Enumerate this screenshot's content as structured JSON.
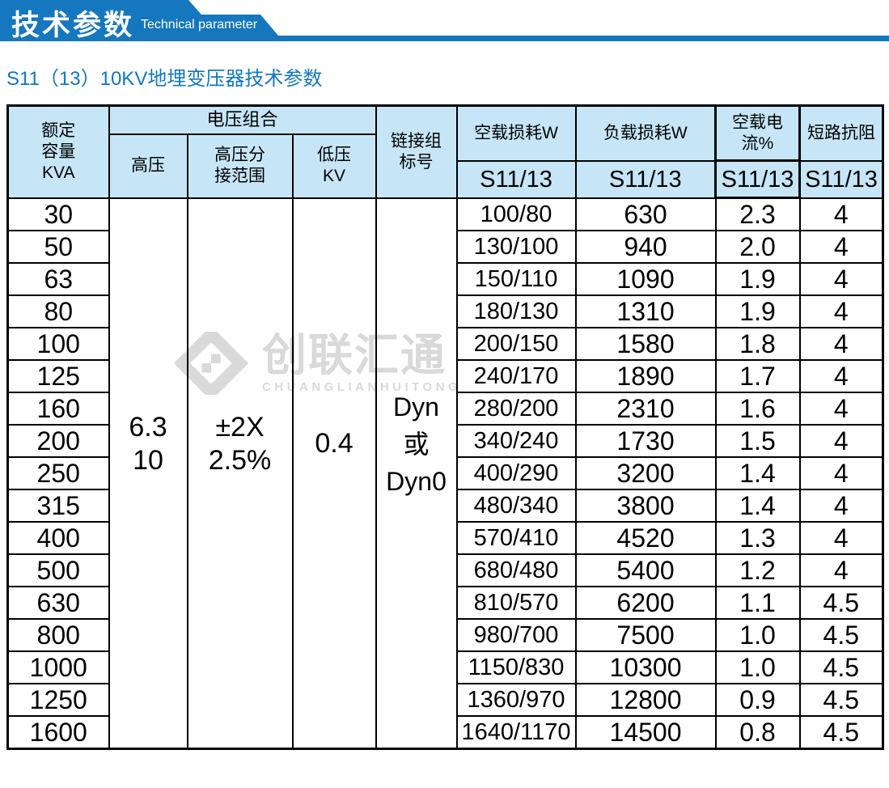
{
  "banner": {
    "title": "技术参数",
    "subtitle": "Technical parameter"
  },
  "page_title": "S11（13）10KV地埋变压器技术参数",
  "watermark": {
    "logo": "chuanglian-diamond-logo",
    "name_cn": "创联汇通",
    "name_en": "CHUANGLIANHUITONG"
  },
  "colors": {
    "accent_blue": "#1577bd",
    "header_bg": "#c6e6f7",
    "border": "#000000",
    "watermark_gray": "#d9d9d9"
  },
  "table": {
    "header": {
      "capacity": [
        "额定",
        "容量",
        "KVA"
      ],
      "voltage_group": "电压组合",
      "hv": "高压",
      "hv_tap": [
        "高压分",
        "接范围"
      ],
      "lv": [
        "低压",
        "KV"
      ],
      "vector_group": [
        "链接组",
        "标号"
      ],
      "no_load_loss": "空载损耗W",
      "load_loss": "负载损耗W",
      "no_load_current": "空载电流%",
      "impedance": "短路抗阻",
      "model": "S11/13"
    },
    "merged": {
      "hv": [
        "6.3",
        "10"
      ],
      "hv_tap": [
        "±2X",
        "2.5%"
      ],
      "lv": "0.4",
      "vector": [
        "Dyn",
        "或",
        "Dyn0"
      ]
    },
    "rows": [
      {
        "kva": "30",
        "no_load_loss": "100/80",
        "load_loss": "630",
        "no_load_current": "2.3",
        "impedance": "4"
      },
      {
        "kva": "50",
        "no_load_loss": "130/100",
        "load_loss": "940",
        "no_load_current": "2.0",
        "impedance": "4"
      },
      {
        "kva": "63",
        "no_load_loss": "150/110",
        "load_loss": "1090",
        "no_load_current": "1.9",
        "impedance": "4"
      },
      {
        "kva": "80",
        "no_load_loss": "180/130",
        "load_loss": "1310",
        "no_load_current": "1.9",
        "impedance": "4"
      },
      {
        "kva": "100",
        "no_load_loss": "200/150",
        "load_loss": "1580",
        "no_load_current": "1.8",
        "impedance": "4"
      },
      {
        "kva": "125",
        "no_load_loss": "240/170",
        "load_loss": "1890",
        "no_load_current": "1.7",
        "impedance": "4"
      },
      {
        "kva": "160",
        "no_load_loss": "280/200",
        "load_loss": "2310",
        "no_load_current": "1.6",
        "impedance": "4"
      },
      {
        "kva": "200",
        "no_load_loss": "340/240",
        "load_loss": "1730",
        "no_load_current": "1.5",
        "impedance": "4"
      },
      {
        "kva": "250",
        "no_load_loss": "400/290",
        "load_loss": "3200",
        "no_load_current": "1.4",
        "impedance": "4"
      },
      {
        "kva": "315",
        "no_load_loss": "480/340",
        "load_loss": "3800",
        "no_load_current": "1.4",
        "impedance": "4"
      },
      {
        "kva": "400",
        "no_load_loss": "570/410",
        "load_loss": "4520",
        "no_load_current": "1.3",
        "impedance": "4"
      },
      {
        "kva": "500",
        "no_load_loss": "680/480",
        "load_loss": "5400",
        "no_load_current": "1.2",
        "impedance": "4"
      },
      {
        "kva": "630",
        "no_load_loss": "810/570",
        "load_loss": "6200",
        "no_load_current": "1.1",
        "impedance": "4.5"
      },
      {
        "kva": "800",
        "no_load_loss": "980/700",
        "load_loss": "7500",
        "no_load_current": "1.0",
        "impedance": "4.5"
      },
      {
        "kva": "1000",
        "no_load_loss": "1150/830",
        "load_loss": "10300",
        "no_load_current": "1.0",
        "impedance": "4.5"
      },
      {
        "kva": "1250",
        "no_load_loss": "1360/970",
        "load_loss": "12800",
        "no_load_current": "0.9",
        "impedance": "4.5"
      },
      {
        "kva": "1600",
        "no_load_loss": "1640/1170",
        "load_loss": "14500",
        "no_load_current": "0.8",
        "impedance": "4.5"
      }
    ]
  }
}
